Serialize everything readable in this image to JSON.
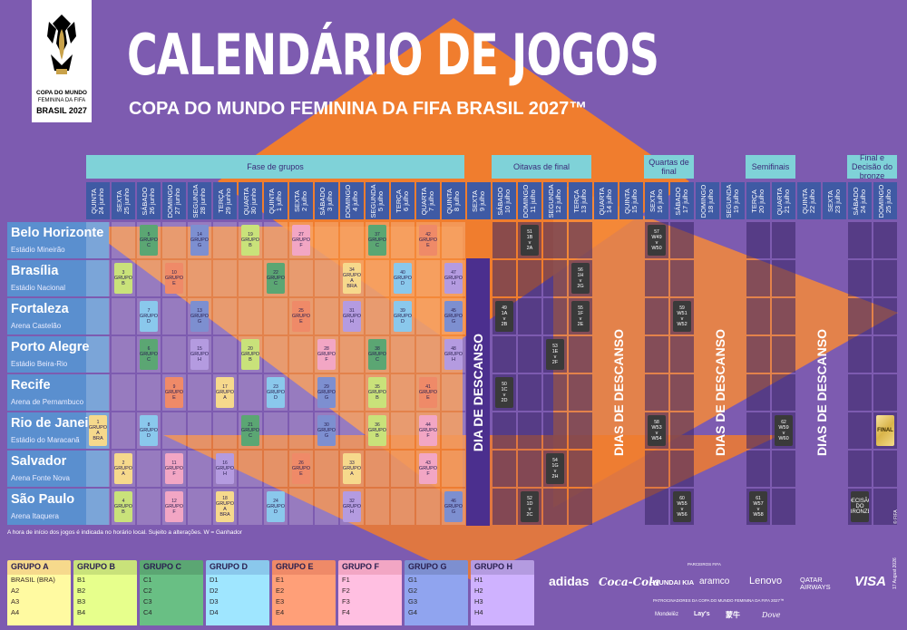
{
  "header": {
    "title": "CALENDÁRIO DE JOGOS",
    "subtitle": "COPA DO MUNDO FEMININA DA FIFA BRASIL 2027™",
    "logo": {
      "line1": "COPA DO MUNDO",
      "line2": "FEMININA DA FIFA",
      "line3": "BRASIL 2027"
    }
  },
  "colors": {
    "background": "#7d5bb0",
    "diamond": "#f07d2e",
    "stage_header": "#7fd2d8",
    "date_header": "#3f5aa4",
    "city": "#5a8fcf",
    "group_a": "#f6d98c",
    "group_b": "#c9e27a",
    "group_c": "#5ba673",
    "group_d": "#8ac8ec",
    "group_e": "#ef8a68",
    "group_f": "#f2a6c4",
    "group_g": "#7d8fd0",
    "group_h": "#b49be0"
  },
  "stages": [
    {
      "label": "Fase de grupos"
    },
    {
      "label": "Oitavas de final"
    },
    {
      "label": "Quartas de final"
    },
    {
      "label": "Semifinais"
    },
    {
      "label": "Final e Decisão do bronze"
    }
  ],
  "dates": [
    {
      "day": "QUINTA",
      "date": "24 junho"
    },
    {
      "day": "SEXTA",
      "date": "25 junho"
    },
    {
      "day": "SÁBADO",
      "date": "26 junho"
    },
    {
      "day": "DOMINGO",
      "date": "27 junho"
    },
    {
      "day": "SEGUNDA",
      "date": "28 junho"
    },
    {
      "day": "TERÇA",
      "date": "29 junho"
    },
    {
      "day": "QUARTA",
      "date": "30 junho"
    },
    {
      "day": "QUINTA",
      "date": "1 julho"
    },
    {
      "day": "SEXTA",
      "date": "2 julho"
    },
    {
      "day": "SÁBADO",
      "date": "3 julho"
    },
    {
      "day": "DOMINGO",
      "date": "4 julho"
    },
    {
      "day": "SEGUNDA",
      "date": "5 julho"
    },
    {
      "day": "TERÇA",
      "date": "6 julho"
    },
    {
      "day": "QUARTA",
      "date": "7 julho"
    },
    {
      "day": "QUINTA",
      "date": "8 julho"
    },
    {
      "day": "SEXTA",
      "date": "9 julho"
    },
    {
      "day": "SÁBADO",
      "date": "10 julho"
    },
    {
      "day": "DOMINGO",
      "date": "11 julho"
    },
    {
      "day": "SEGUNDA",
      "date": "12 julho"
    },
    {
      "day": "TERÇA",
      "date": "13 julho"
    },
    {
      "day": "QUARTA",
      "date": "14 julho"
    },
    {
      "day": "QUINTA",
      "date": "15 julho"
    },
    {
      "day": "SEXTA",
      "date": "16 julho"
    },
    {
      "day": "SÁBADO",
      "date": "17 julho"
    },
    {
      "day": "DOMINGO",
      "date": "18 julho"
    },
    {
      "day": "SEGUNDA",
      "date": "19 julho"
    },
    {
      "day": "TERÇA",
      "date": "20 julho"
    },
    {
      "day": "QUARTA",
      "date": "21 julho"
    },
    {
      "day": "QUINTA",
      "date": "22 julho"
    },
    {
      "day": "SEXTA",
      "date": "23 julho"
    },
    {
      "day": "SÁBADO",
      "date": "24 julho"
    },
    {
      "day": "DOMINGO",
      "date": "25 julho"
    }
  ],
  "cities": [
    {
      "name": "Belo Horizonte",
      "stadium": "Estádio Mineirão"
    },
    {
      "name": "Brasília",
      "stadium": "Estádio Nacional"
    },
    {
      "name": "Fortaleza",
      "stadium": "Arena Castelão"
    },
    {
      "name": "Porto Alegre",
      "stadium": "Estádio Beira-Rio"
    },
    {
      "name": "Recife",
      "stadium": "Arena de Pernambuco"
    },
    {
      "name": "Rio de Janeiro",
      "stadium": "Estádio do Maracanã"
    },
    {
      "name": "Salvador",
      "stadium": "Arena Fonte Nova"
    },
    {
      "name": "São Paulo",
      "stadium": "Arena Itaquera"
    }
  ],
  "rest_label": "DIA DE DESCANSO",
  "rest_days_label": "DIAS DE DESCANSO",
  "matches": [
    {
      "row": 0,
      "col": 2,
      "num": "5",
      "l1": "GRUPO",
      "l2": "C",
      "g": "c"
    },
    {
      "row": 0,
      "col": 4,
      "num": "14",
      "l1": "GRUPO",
      "l2": "G",
      "g": "g"
    },
    {
      "row": 0,
      "col": 6,
      "num": "19",
      "l1": "GRUPO",
      "l2": "B",
      "g": "b"
    },
    {
      "row": 0,
      "col": 8,
      "num": "27",
      "l1": "GRUPO",
      "l2": "F",
      "g": "f"
    },
    {
      "row": 0,
      "col": 11,
      "num": "37",
      "l1": "GRUPO",
      "l2": "C",
      "g": "c"
    },
    {
      "row": 0,
      "col": 13,
      "num": "42",
      "l1": "GRUPO",
      "l2": "E",
      "g": "e"
    },
    {
      "row": 1,
      "col": 1,
      "num": "3",
      "l1": "GRUPO",
      "l2": "B",
      "g": "b"
    },
    {
      "row": 1,
      "col": 3,
      "num": "10",
      "l1": "GRUPO",
      "l2": "E",
      "g": "e"
    },
    {
      "row": 1,
      "col": 7,
      "num": "22",
      "l1": "GRUPO",
      "l2": "C",
      "g": "c"
    },
    {
      "row": 1,
      "col": 10,
      "num": "34",
      "l1": "GRUPO",
      "l2": "A",
      "l3": "BRA",
      "g": "a"
    },
    {
      "row": 1,
      "col": 12,
      "num": "40",
      "l1": "GRUPO",
      "l2": "D",
      "g": "d"
    },
    {
      "row": 1,
      "col": 14,
      "num": "47",
      "l1": "GRUPO",
      "l2": "H",
      "g": "h"
    },
    {
      "row": 2,
      "col": 2,
      "num": "7",
      "l1": "GRUPO",
      "l2": "D",
      "g": "d"
    },
    {
      "row": 2,
      "col": 4,
      "num": "13",
      "l1": "GRUPO",
      "l2": "G",
      "g": "g"
    },
    {
      "row": 2,
      "col": 8,
      "num": "25",
      "l1": "GRUPO",
      "l2": "E",
      "g": "e"
    },
    {
      "row": 2,
      "col": 10,
      "num": "31",
      "l1": "GRUPO",
      "l2": "H",
      "g": "h"
    },
    {
      "row": 2,
      "col": 12,
      "num": "39",
      "l1": "GRUPO",
      "l2": "D",
      "g": "d"
    },
    {
      "row": 2,
      "col": 14,
      "num": "45",
      "l1": "GRUPO",
      "l2": "G",
      "g": "g"
    },
    {
      "row": 3,
      "col": 2,
      "num": "6",
      "l1": "GRUPO",
      "l2": "C",
      "g": "c"
    },
    {
      "row": 3,
      "col": 4,
      "num": "15",
      "l1": "GRUPO",
      "l2": "H",
      "g": "h"
    },
    {
      "row": 3,
      "col": 6,
      "num": "20",
      "l1": "GRUPO",
      "l2": "B",
      "g": "b"
    },
    {
      "row": 3,
      "col": 9,
      "num": "28",
      "l1": "GRUPO",
      "l2": "F",
      "g": "f"
    },
    {
      "row": 3,
      "col": 11,
      "num": "38",
      "l1": "GRUPO",
      "l2": "C",
      "g": "c"
    },
    {
      "row": 3,
      "col": 14,
      "num": "48",
      "l1": "GRUPO",
      "l2": "H",
      "g": "h"
    },
    {
      "row": 4,
      "col": 3,
      "num": "9",
      "l1": "GRUPO",
      "l2": "E",
      "g": "e"
    },
    {
      "row": 4,
      "col": 5,
      "num": "17",
      "l1": "GRUPO",
      "l2": "A",
      "g": "a"
    },
    {
      "row": 4,
      "col": 7,
      "num": "23",
      "l1": "GRUPO",
      "l2": "D",
      "g": "d"
    },
    {
      "row": 4,
      "col": 9,
      "num": "29",
      "l1": "GRUPO",
      "l2": "G",
      "g": "g"
    },
    {
      "row": 4,
      "col": 11,
      "num": "35",
      "l1": "GRUPO",
      "l2": "B",
      "g": "b"
    },
    {
      "row": 4,
      "col": 13,
      "num": "41",
      "l1": "GRUPO",
      "l2": "E",
      "g": "e"
    },
    {
      "row": 5,
      "col": 0,
      "num": "1",
      "l1": "GRUPO",
      "l2": "A",
      "l3": "BRA",
      "g": "a"
    },
    {
      "row": 5,
      "col": 2,
      "num": "8",
      "l1": "GRUPO",
      "l2": "D",
      "g": "d"
    },
    {
      "row": 5,
      "col": 6,
      "num": "21",
      "l1": "GRUPO",
      "l2": "C",
      "g": "c"
    },
    {
      "row": 5,
      "col": 9,
      "num": "30",
      "l1": "GRUPO",
      "l2": "G",
      "g": "g"
    },
    {
      "row": 5,
      "col": 11,
      "num": "36",
      "l1": "GRUPO",
      "l2": "B",
      "g": "b"
    },
    {
      "row": 5,
      "col": 13,
      "num": "44",
      "l1": "GRUPO",
      "l2": "F",
      "g": "f"
    },
    {
      "row": 6,
      "col": 1,
      "num": "2",
      "l1": "GRUPO",
      "l2": "A",
      "g": "a"
    },
    {
      "row": 6,
      "col": 3,
      "num": "11",
      "l1": "GRUPO",
      "l2": "F",
      "g": "f"
    },
    {
      "row": 6,
      "col": 5,
      "num": "16",
      "l1": "GRUPO",
      "l2": "H",
      "g": "h"
    },
    {
      "row": 6,
      "col": 8,
      "num": "26",
      "l1": "GRUPO",
      "l2": "E",
      "g": "e"
    },
    {
      "row": 6,
      "col": 10,
      "num": "33",
      "l1": "GRUPO",
      "l2": "A",
      "g": "a"
    },
    {
      "row": 6,
      "col": 13,
      "num": "43",
      "l1": "GRUPO",
      "l2": "F",
      "g": "f"
    },
    {
      "row": 7,
      "col": 1,
      "num": "4",
      "l1": "GRUPO",
      "l2": "B",
      "g": "b"
    },
    {
      "row": 7,
      "col": 3,
      "num": "12",
      "l1": "GRUPO",
      "l2": "F",
      "g": "f"
    },
    {
      "row": 7,
      "col": 5,
      "num": "18",
      "l1": "GRUPO",
      "l2": "A",
      "l3": "BRA",
      "g": "a"
    },
    {
      "row": 7,
      "col": 7,
      "num": "24",
      "l1": "GRUPO",
      "l2": "D",
      "g": "d"
    },
    {
      "row": 7,
      "col": 10,
      "num": "32",
      "l1": "GRUPO",
      "l2": "H",
      "g": "h"
    },
    {
      "row": 7,
      "col": 14,
      "num": "46",
      "l1": "GRUPO",
      "l2": "G",
      "g": "g"
    },
    {
      "row": 0,
      "col": 17,
      "num": "51",
      "l1": "1B",
      "l2": "v",
      "l3": "2A",
      "g": "k"
    },
    {
      "row": 1,
      "col": 19,
      "num": "56",
      "l1": "1H",
      "l2": "v",
      "l3": "2G",
      "g": "k"
    },
    {
      "row": 2,
      "col": 16,
      "num": "49",
      "l1": "1A",
      "l2": "v",
      "l3": "2B",
      "g": "k"
    },
    {
      "row": 2,
      "col": 19,
      "num": "55",
      "l1": "1F",
      "l2": "v",
      "l3": "2E",
      "g": "k"
    },
    {
      "row": 3,
      "col": 18,
      "num": "53",
      "l1": "1E",
      "l2": "v",
      "l3": "2F",
      "g": "k"
    },
    {
      "row": 4,
      "col": 16,
      "num": "50",
      "l1": "1C",
      "l2": "v",
      "l3": "2D",
      "g": "k"
    },
    {
      "row": 6,
      "col": 18,
      "num": "54",
      "l1": "1G",
      "l2": "v",
      "l3": "2H",
      "g": "k"
    },
    {
      "row": 7,
      "col": 17,
      "num": "52",
      "l1": "1D",
      "l2": "v",
      "l3": "2C",
      "g": "k"
    },
    {
      "row": 0,
      "col": 22,
      "num": "57",
      "l1": "W49",
      "l2": "v",
      "l3": "W50",
      "g": "k"
    },
    {
      "row": 2,
      "col": 23,
      "num": "59",
      "l1": "W51",
      "l2": "v",
      "l3": "W52",
      "g": "k"
    },
    {
      "row": 5,
      "col": 22,
      "num": "58",
      "l1": "W53",
      "l2": "v",
      "l3": "W54",
      "g": "k"
    },
    {
      "row": 7,
      "col": 23,
      "num": "60",
      "l1": "W55",
      "l2": "v",
      "l3": "W56",
      "g": "k"
    },
    {
      "row": 5,
      "col": 27,
      "num": "62",
      "l1": "W59",
      "l2": "v",
      "l3": "W60",
      "g": "k"
    },
    {
      "row": 7,
      "col": 26,
      "num": "61",
      "l1": "W57",
      "l2": "v",
      "l3": "W58",
      "g": "k"
    },
    {
      "row": 5,
      "col": 31,
      "num": "",
      "l1": "FINAL",
      "l2": "",
      "l3": "",
      "g": "fin"
    },
    {
      "row": 7,
      "col": 30,
      "num": "",
      "l1": "DECISÃO",
      "l2": "DO",
      "l3": "BRONZE",
      "g": "bronze"
    }
  ],
  "footnote": "A hora de início dos jogos é indicada no horário local. Sujeito a alterações. W = Ganhador",
  "groups": [
    {
      "name": "GRUPO A",
      "teams": [
        "BRASIL (BRA)",
        "A2",
        "A3",
        "A4"
      ],
      "g": "a"
    },
    {
      "name": "GRUPO B",
      "teams": [
        "B1",
        "B2",
        "B3",
        "B4"
      ],
      "g": "b"
    },
    {
      "name": "GRUPO C",
      "teams": [
        "C1",
        "C2",
        "C3",
        "C4"
      ],
      "g": "c"
    },
    {
      "name": "GRUPO D",
      "teams": [
        "D1",
        "D2",
        "D3",
        "D4"
      ],
      "g": "d"
    },
    {
      "name": "GRUPO E",
      "teams": [
        "E1",
        "E2",
        "E3",
        "E4"
      ],
      "g": "e"
    },
    {
      "name": "GRUPO F",
      "teams": [
        "F1",
        "F2",
        "F3",
        "F4"
      ],
      "g": "f"
    },
    {
      "name": "GRUPO G",
      "teams": [
        "G1",
        "G2",
        "G3",
        "G4"
      ],
      "g": "g"
    },
    {
      "name": "GRUPO H",
      "teams": [
        "H1",
        "H2",
        "H3",
        "H4"
      ],
      "g": "h"
    }
  ],
  "sponsors": {
    "label": "PARCEIROS FIFA",
    "partners": [
      "adidas",
      "Coca-Cola",
      "HYUNDAI KIA",
      "aramco",
      "Lenovo",
      "QATAR AIRWAYS",
      "VISA"
    ],
    "label2": "PATROCINADORES DA COPA DO MUNDO FEMININA DA FIFA 2027™",
    "supporters": [
      "Mondelēz",
      "Lay's",
      "蒙牛",
      "Dove"
    ]
  },
  "date_stamp": "17 August 2026",
  "fifa_copy": "© FIFA"
}
